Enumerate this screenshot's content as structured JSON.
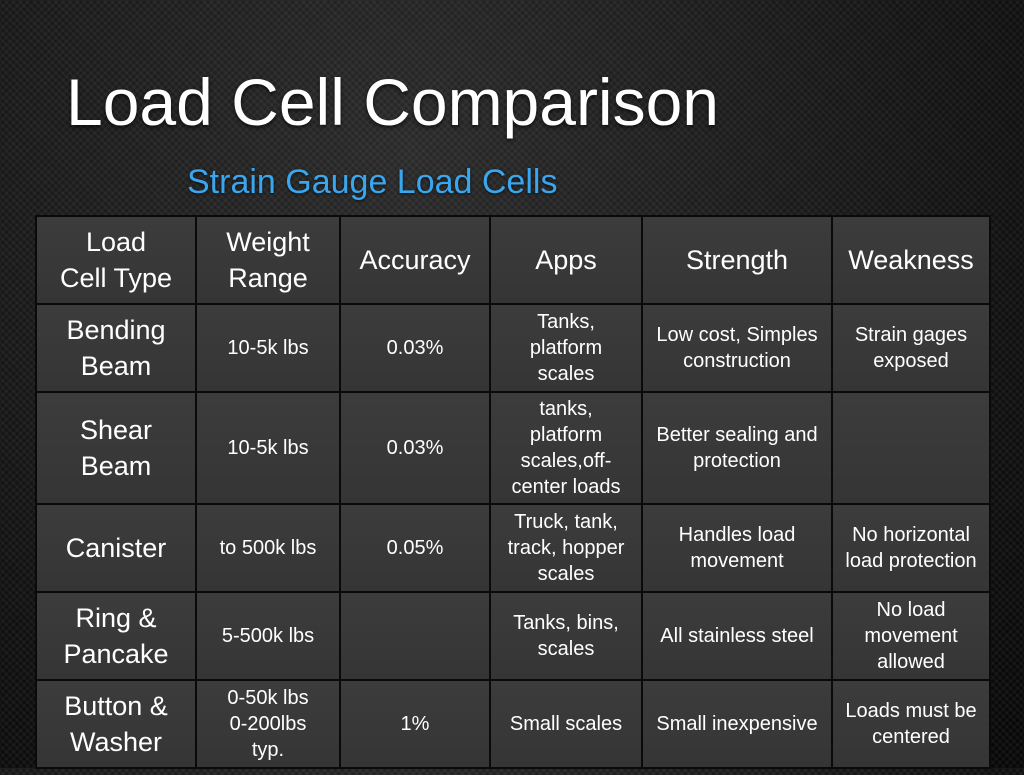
{
  "title": "Load Cell Comparison",
  "subtitle": "Strain Gauge Load Cells",
  "table": {
    "headers": {
      "type": "Load Cell Type",
      "weight": "Weight Range",
      "accuracy": "Accuracy",
      "apps": "Apps",
      "strength": "Strength",
      "weakness": "Weakness"
    },
    "rows": [
      {
        "type": "Bending Beam",
        "weight": "10-5k lbs",
        "accuracy": "0.03%",
        "apps": "Tanks, platform scales",
        "strength": "Low cost, Simples construction",
        "weakness": "Strain gages exposed"
      },
      {
        "type": "Shear Beam",
        "weight": "10-5k lbs",
        "accuracy": "0.03%",
        "apps": "tanks, platform scales,off-center loads",
        "strength": "Better sealing and protection",
        "weakness": ""
      },
      {
        "type": "Canister",
        "weight": "to 500k lbs",
        "accuracy": "0.05%",
        "apps": "Truck, tank, track, hopper scales",
        "strength": "Handles load movement",
        "weakness": "No horizontal load protection"
      },
      {
        "type": "Ring & Pancake",
        "weight": "5-500k lbs",
        "accuracy": "",
        "apps": "Tanks, bins, scales",
        "strength": "All stainless steel",
        "weakness": "No load movement allowed"
      },
      {
        "type": "Button & Washer",
        "weight": "0-50k lbs 0-200lbs typ.",
        "accuracy": "1%",
        "apps": "Small scales",
        "strength": "Small inexpensive",
        "weakness": "Loads must be centered"
      }
    ]
  }
}
